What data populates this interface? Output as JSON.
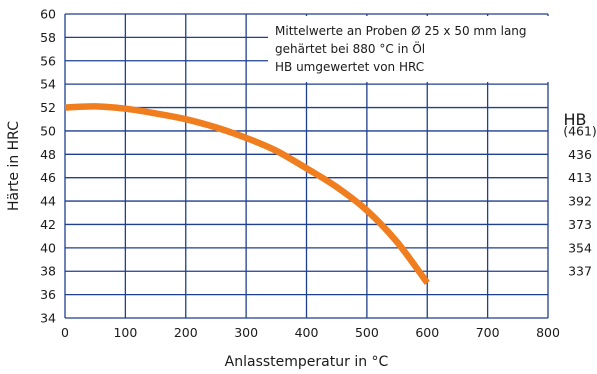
{
  "chart_data": {
    "type": "line",
    "xlabel": "Anlasstemperatur in °C",
    "ylabel": "Härte in HRC",
    "xlim": [
      0,
      800
    ],
    "ylim": [
      34,
      60
    ],
    "x_ticks": [
      0,
      100,
      200,
      300,
      400,
      500,
      600,
      700,
      800
    ],
    "y_ticks": [
      34,
      36,
      38,
      40,
      42,
      44,
      46,
      48,
      50,
      52,
      54,
      56,
      58,
      60
    ],
    "grid": true,
    "series": [
      {
        "x": [
          0,
          50,
          100,
          150,
          200,
          250,
          300,
          350,
          400,
          450,
          500,
          550,
          600
        ],
        "y": [
          52.0,
          52.1,
          51.9,
          51.5,
          51.0,
          50.3,
          49.4,
          48.3,
          46.8,
          45.2,
          43.2,
          40.5,
          37.0
        ],
        "color": "#f07d1e"
      }
    ],
    "annotation": [
      "Mittelwerte an Proben Ø 25 x 50 mm lang",
      "gehärtet bei 880 °C in Öl",
      "HB umgewertet von HRC"
    ],
    "secondary_axis": {
      "label": "HB",
      "ticks": [
        {
          "hrc": 50,
          "label": "(461)"
        },
        {
          "hrc": 48,
          "label": "436"
        },
        {
          "hrc": 46,
          "label": "413"
        },
        {
          "hrc": 44,
          "label": "392"
        },
        {
          "hrc": 42,
          "label": "373"
        },
        {
          "hrc": 40,
          "label": "354"
        },
        {
          "hrc": 38,
          "label": "337"
        }
      ]
    },
    "colors": {
      "grid": "#1f3f8f",
      "curve": "#f07d1e"
    }
  }
}
